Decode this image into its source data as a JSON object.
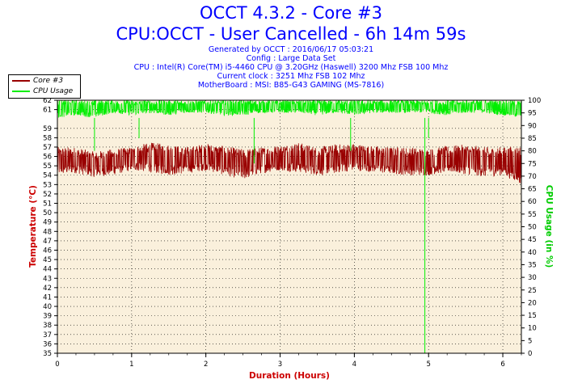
{
  "header": {
    "title": "OCCT 4.3.2 - Core #3",
    "subtitle": "CPU:OCCT - User Cancelled - 6h 14m 59s",
    "info_lines": [
      "Generated by OCCT : 2016/06/17 05:03:21",
      "Config : Large Data Set",
      "CPU : Intel(R) Core(TM) i5-4460 CPU @ 3.20GHz (Haswell) 3200 Mhz FSB 100 Mhz",
      "Current clock : 3251 Mhz FSB 102 Mhz",
      "MotherBoard : MSI: B85-G43 GAMING (MS-7816)"
    ]
  },
  "colors": {
    "title": "#0000ff",
    "temperature": "#990000",
    "cpu_usage": "#00ee00",
    "plot_bg": "#faf0dc",
    "axis_label_left": "#cc0000",
    "axis_label_right": "#00cc00"
  },
  "chart_data": {
    "type": "line",
    "title": "OCCT 4.3.2 - Core #3",
    "xlabel": "Duration (Hours)",
    "ylabel": "Temperature (°C)",
    "y2label": "CPU Usage (in %)",
    "xlim": [
      0,
      6.25
    ],
    "ylim": [
      35,
      62
    ],
    "y2lim": [
      0,
      100
    ],
    "x_ticks": [
      0,
      1,
      2,
      3,
      4,
      5,
      6
    ],
    "y_ticks": [
      35,
      36,
      37,
      38,
      39,
      40,
      41,
      42,
      43,
      44,
      45,
      46,
      47,
      48,
      49,
      50,
      51,
      52,
      53,
      54,
      55,
      56,
      57,
      58,
      59,
      61,
      62
    ],
    "y2_ticks": [
      0,
      5,
      10,
      15,
      20,
      25,
      30,
      35,
      40,
      45,
      50,
      55,
      60,
      65,
      70,
      75,
      80,
      85,
      90,
      95,
      100
    ],
    "legend": [
      "Core #3",
      "CPU Usage"
    ],
    "legend_position": "top-left",
    "series": [
      {
        "name": "Core #3",
        "axis": "left",
        "summary": "noisy band between about 54 and 57 °C with occasional dips to about 52-53 °C",
        "x": [
          0,
          0.25,
          0.5,
          0.75,
          1.0,
          1.25,
          1.5,
          1.75,
          2.0,
          2.25,
          2.5,
          2.75,
          3.0,
          3.25,
          3.5,
          3.75,
          4.0,
          4.25,
          4.5,
          4.75,
          5.0,
          5.25,
          5.5,
          5.75,
          6.0,
          6.25
        ],
        "low": [
          54,
          54.2,
          53.8,
          54,
          54.5,
          54.3,
          54,
          54.2,
          54.5,
          54,
          53.5,
          54.2,
          54.5,
          54.3,
          54,
          54.2,
          54.5,
          54.3,
          54.1,
          54,
          54,
          54.3,
          54.1,
          53.8,
          54,
          53
        ],
        "high": [
          57,
          57,
          56.5,
          56.8,
          57,
          57.5,
          57.3,
          57,
          57.4,
          57.1,
          56.8,
          57,
          57.2,
          57.5,
          57,
          57.3,
          57.4,
          57.1,
          57,
          57,
          56.8,
          57.1,
          57.3,
          57,
          57,
          57.2
        ]
      },
      {
        "name": "CPU Usage",
        "axis": "right",
        "summary": "noisy band between about 93 and 100 % with spikes down, one drop to 0 % near 4.95 h",
        "x": [
          0,
          0.25,
          0.5,
          0.75,
          1.0,
          1.25,
          1.5,
          1.75,
          2.0,
          2.25,
          2.5,
          2.75,
          3.0,
          3.25,
          3.5,
          3.75,
          4.0,
          4.25,
          4.5,
          4.75,
          5.0,
          5.25,
          5.5,
          5.75,
          6.0,
          6.25
        ],
        "low": [
          93,
          94,
          93,
          95,
          94,
          95,
          94,
          95,
          95,
          94,
          94,
          95,
          95,
          95,
          94,
          95,
          94,
          95,
          95,
          95,
          95,
          94,
          95,
          95,
          94,
          93
        ],
        "high": [
          100,
          100,
          100,
          100,
          100,
          100,
          100,
          100,
          100,
          100,
          100,
          100,
          100,
          100,
          100,
          100,
          100,
          100,
          100,
          100,
          100,
          100,
          100,
          100,
          100,
          100
        ],
        "spikes": [
          {
            "x": 0.5,
            "value": 80
          },
          {
            "x": 1.1,
            "value": 85
          },
          {
            "x": 2.65,
            "value": 75
          },
          {
            "x": 3.95,
            "value": 80
          },
          {
            "x": 4.95,
            "value": 0
          },
          {
            "x": 5.0,
            "value": 85
          }
        ]
      }
    ]
  }
}
